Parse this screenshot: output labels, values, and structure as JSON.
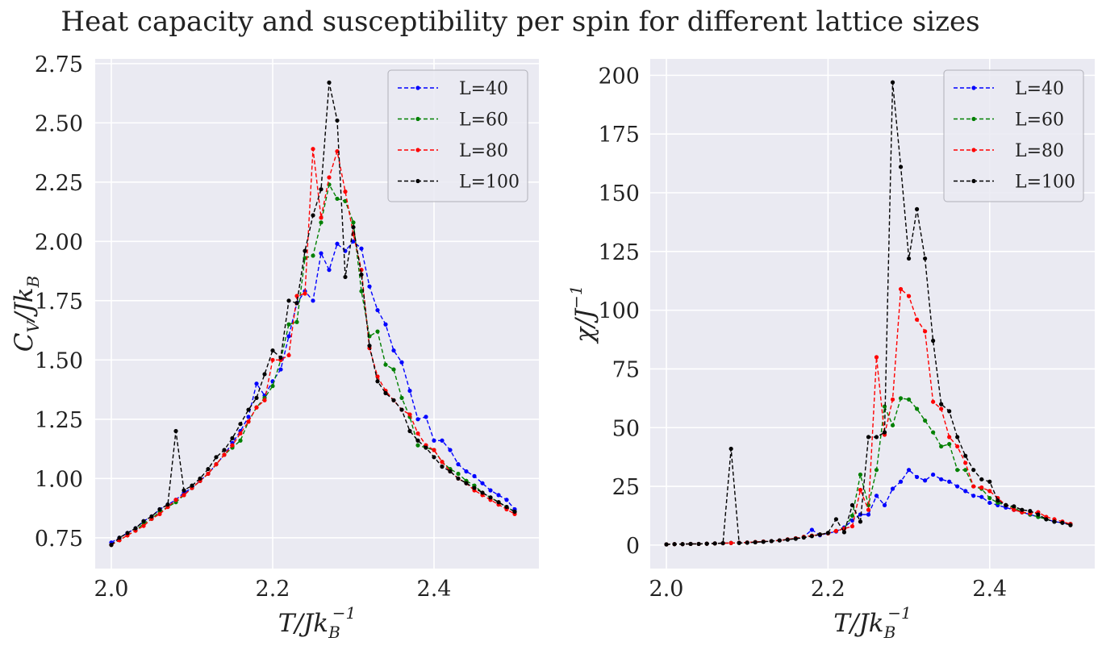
{
  "figure": {
    "title": "Heat capacity and susceptibility per spin for different lattice sizes"
  },
  "chart_data": [
    {
      "type": "line",
      "xlabel": "T/Jk_B^-1",
      "xlabel_main": "T/Jk",
      "xlabel_sub": "B",
      "xlabel_sup": "−1",
      "ylabel": "C_V/Jk_B",
      "ylabel_a": "C",
      "ylabel_a_sub": "V",
      "ylabel_b": "/Jk",
      "ylabel_b_sub": "B",
      "xlim": [
        1.98,
        2.53
      ],
      "ylim": [
        0.62,
        2.77
      ],
      "xticks": [
        2.0,
        2.2,
        2.4
      ],
      "xtick_labels": [
        "2.0",
        "2.2",
        "2.4"
      ],
      "yticks": [
        0.75,
        1.0,
        1.25,
        1.5,
        1.75,
        2.0,
        2.25,
        2.5,
        2.75
      ],
      "ytick_labels": [
        "0.75",
        "1.00",
        "1.25",
        "1.50",
        "1.75",
        "2.00",
        "2.25",
        "2.50",
        "2.75"
      ],
      "legend_position": "top-right",
      "x": [
        2.0,
        2.01,
        2.02,
        2.03,
        2.04,
        2.05,
        2.06,
        2.07,
        2.08,
        2.09,
        2.1,
        2.11,
        2.12,
        2.13,
        2.14,
        2.15,
        2.16,
        2.17,
        2.18,
        2.19,
        2.2,
        2.21,
        2.22,
        2.23,
        2.24,
        2.25,
        2.26,
        2.27,
        2.28,
        2.29,
        2.3,
        2.31,
        2.32,
        2.33,
        2.34,
        2.35,
        2.36,
        2.37,
        2.38,
        2.39,
        2.4,
        2.41,
        2.42,
        2.43,
        2.44,
        2.45,
        2.46,
        2.47,
        2.48,
        2.49,
        2.5
      ],
      "series": [
        {
          "name": "L=40",
          "color": "#0000ff",
          "values": [
            0.73,
            0.75,
            0.77,
            0.79,
            0.82,
            0.84,
            0.87,
            0.89,
            0.91,
            0.94,
            0.96,
            0.99,
            1.02,
            1.06,
            1.1,
            1.15,
            1.2,
            1.26,
            1.4,
            1.35,
            1.41,
            1.46,
            1.6,
            1.74,
            1.79,
            1.75,
            1.95,
            1.88,
            1.99,
            1.96,
            2.0,
            1.97,
            1.81,
            1.71,
            1.65,
            1.54,
            1.49,
            1.37,
            1.25,
            1.26,
            1.16,
            1.16,
            1.12,
            1.06,
            1.03,
            1.01,
            0.98,
            0.95,
            0.93,
            0.91,
            0.87
          ]
        },
        {
          "name": "L=60",
          "color": "#008000",
          "values": [
            0.72,
            0.74,
            0.76,
            0.78,
            0.81,
            0.83,
            0.86,
            0.88,
            0.9,
            0.93,
            0.96,
            0.99,
            1.02,
            1.06,
            1.1,
            1.13,
            1.16,
            1.24,
            1.3,
            1.34,
            1.39,
            1.5,
            1.65,
            1.66,
            1.93,
            1.94,
            2.08,
            2.24,
            2.18,
            2.17,
            2.08,
            1.79,
            1.6,
            1.62,
            1.48,
            1.46,
            1.34,
            1.26,
            1.14,
            1.13,
            1.12,
            1.07,
            1.04,
            1.02,
            0.99,
            0.97,
            0.94,
            0.92,
            0.9,
            0.88,
            0.86
          ]
        },
        {
          "name": "L=80",
          "color": "#ff0000",
          "values": [
            0.72,
            0.74,
            0.76,
            0.78,
            0.8,
            0.83,
            0.85,
            0.88,
            0.91,
            0.93,
            0.96,
            0.99,
            1.02,
            1.06,
            1.1,
            1.14,
            1.19,
            1.24,
            1.3,
            1.33,
            1.5,
            1.5,
            1.52,
            1.77,
            1.78,
            2.39,
            2.1,
            2.27,
            2.38,
            2.21,
            2.03,
            1.88,
            1.55,
            1.43,
            1.37,
            1.33,
            1.29,
            1.27,
            1.19,
            1.14,
            1.12,
            1.07,
            1.03,
            1.0,
            0.98,
            0.95,
            0.93,
            0.91,
            0.89,
            0.87,
            0.85
          ]
        },
        {
          "name": "L=100",
          "color": "#000000",
          "values": [
            0.72,
            0.75,
            0.77,
            0.79,
            0.82,
            0.84,
            0.87,
            0.89,
            1.2,
            0.95,
            0.97,
            1.0,
            1.04,
            1.09,
            1.12,
            1.17,
            1.23,
            1.29,
            1.34,
            1.44,
            1.54,
            1.51,
            1.75,
            1.74,
            1.96,
            2.11,
            2.22,
            2.67,
            2.51,
            1.85,
            2.06,
            1.86,
            1.56,
            1.41,
            1.36,
            1.33,
            1.29,
            1.2,
            1.16,
            1.13,
            1.09,
            1.05,
            1.03,
            1.0,
            0.98,
            0.96,
            0.94,
            0.92,
            0.9,
            0.88,
            0.86
          ]
        }
      ]
    },
    {
      "type": "line",
      "xlabel": "T/Jk_B^-1",
      "xlabel_main": "T/Jk",
      "xlabel_sub": "B",
      "xlabel_sup": "−1",
      "ylabel": "χ/J^-1",
      "ylabel_a": "χ/J",
      "ylabel_a_sup": "−1",
      "xlim": [
        1.98,
        2.53
      ],
      "ylim": [
        -10,
        207
      ],
      "xticks": [
        2.0,
        2.2,
        2.4
      ],
      "xtick_labels": [
        "2.0",
        "2.2",
        "2.4"
      ],
      "yticks": [
        0,
        25,
        50,
        75,
        100,
        125,
        150,
        175,
        200
      ],
      "ytick_labels": [
        "0",
        "25",
        "50",
        "75",
        "100",
        "125",
        "150",
        "175",
        "200"
      ],
      "legend_position": "top-right",
      "x": [
        2.0,
        2.01,
        2.02,
        2.03,
        2.04,
        2.05,
        2.06,
        2.07,
        2.08,
        2.09,
        2.1,
        2.11,
        2.12,
        2.13,
        2.14,
        2.15,
        2.16,
        2.17,
        2.18,
        2.19,
        2.2,
        2.21,
        2.22,
        2.23,
        2.24,
        2.25,
        2.26,
        2.27,
        2.28,
        2.29,
        2.3,
        2.31,
        2.32,
        2.33,
        2.34,
        2.35,
        2.36,
        2.37,
        2.38,
        2.39,
        2.4,
        2.41,
        2.42,
        2.43,
        2.44,
        2.45,
        2.46,
        2.47,
        2.48,
        2.49,
        2.5
      ],
      "series": [
        {
          "name": "L=40",
          "color": "#0000ff",
          "values": [
            0.3,
            0.4,
            0.4,
            0.5,
            0.5,
            0.6,
            0.7,
            0.8,
            0.9,
            1.0,
            1.1,
            1.3,
            1.5,
            1.7,
            2.0,
            2.4,
            2.9,
            3.5,
            6.5,
            4.2,
            5.0,
            5.8,
            7.5,
            10.5,
            13.0,
            13.0,
            21.0,
            17.0,
            24.0,
            27.0,
            32.0,
            29.0,
            27.5,
            30.0,
            28.0,
            27.0,
            25.0,
            23.0,
            21.0,
            20.5,
            18.0,
            17.0,
            16.0,
            15.0,
            14.0,
            13.0,
            12.0,
            11.0,
            10.0,
            9.5,
            9.0
          ]
        },
        {
          "name": "L=60",
          "color": "#008000",
          "values": [
            0.3,
            0.4,
            0.4,
            0.5,
            0.5,
            0.6,
            0.7,
            0.8,
            0.9,
            1.0,
            1.1,
            1.3,
            1.5,
            1.7,
            2.0,
            2.4,
            2.9,
            3.5,
            4.0,
            4.5,
            5.0,
            6.0,
            7.0,
            12.5,
            30.0,
            17.0,
            32.0,
            59.0,
            51.0,
            62.5,
            62.0,
            58.0,
            53.0,
            48.0,
            42.0,
            43.0,
            32.0,
            32.0,
            25.0,
            24.0,
            20.0,
            18.0,
            17.0,
            16.0,
            14.0,
            13.0,
            12.0,
            11.0,
            10.0,
            9.5,
            9.0
          ]
        },
        {
          "name": "L=80",
          "color": "#ff0000",
          "values": [
            0.3,
            0.4,
            0.4,
            0.5,
            0.5,
            0.6,
            0.7,
            0.8,
            0.9,
            1.0,
            1.1,
            1.3,
            1.5,
            1.7,
            2.0,
            2.4,
            2.9,
            3.5,
            4.0,
            4.5,
            5.0,
            6.0,
            7.0,
            8.0,
            23.5,
            15.0,
            80.0,
            47.0,
            62.0,
            109.0,
            106.0,
            96.0,
            91.0,
            61.0,
            58.0,
            46.0,
            42.0,
            35.0,
            25.0,
            24.5,
            23.0,
            20.0,
            17.0,
            15.0,
            14.0,
            13.5,
            14.0,
            12.0,
            11.0,
            10.0,
            9.0
          ]
        },
        {
          "name": "L=100",
          "color": "#000000",
          "values": [
            0.3,
            0.4,
            0.4,
            0.5,
            0.5,
            0.6,
            0.7,
            0.8,
            41.0,
            0.9,
            1.0,
            1.2,
            1.4,
            1.7,
            2.0,
            2.3,
            2.7,
            3.2,
            3.8,
            4.5,
            5.2,
            11.0,
            5.5,
            17.0,
            10.0,
            46.0,
            46.0,
            48.0,
            197.0,
            161.0,
            122.0,
            143.0,
            122.0,
            87.0,
            60.0,
            57.0,
            46.0,
            38.0,
            32.0,
            28.0,
            27.0,
            19.0,
            17.0,
            16.5,
            15.0,
            14.5,
            13.0,
            11.0,
            10.0,
            9.5,
            8.5
          ]
        }
      ]
    }
  ]
}
